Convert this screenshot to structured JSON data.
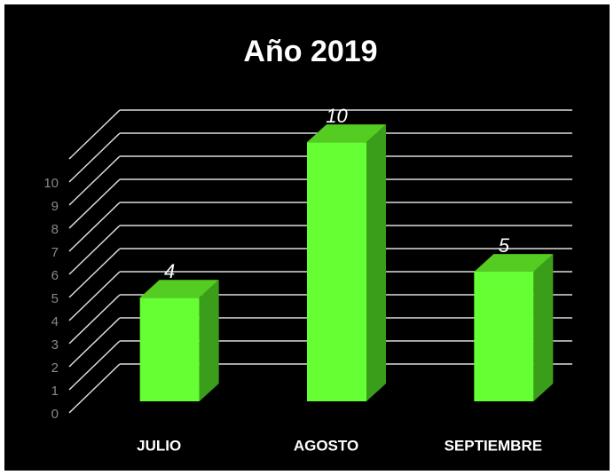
{
  "chart_data": {
    "type": "bar3d",
    "title": "Año 2019",
    "categories": [
      "JULIO",
      "AGOSTO",
      "SEPTIEMBRE"
    ],
    "values": [
      4,
      10,
      5
    ],
    "color": "#66ff33",
    "ylim": [
      0,
      11
    ],
    "yticks": [
      0,
      1,
      2,
      3,
      4,
      5,
      6,
      7,
      8,
      9,
      10
    ],
    "grid": true
  }
}
